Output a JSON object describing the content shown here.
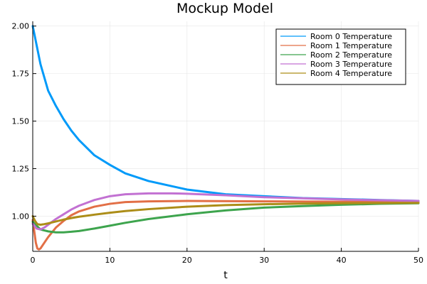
{
  "chart_data": {
    "type": "line",
    "title": "Mockup Model",
    "xlabel": "t",
    "ylabel": "",
    "xlim": [
      0,
      50
    ],
    "ylim": [
      0.815,
      2.025
    ],
    "xticks": [
      0,
      10,
      20,
      30,
      40,
      50
    ],
    "yticks": [
      1.0,
      1.25,
      1.5,
      1.75,
      2.0
    ],
    "ytick_labels": [
      "1.00",
      "1.25",
      "1.50",
      "1.75",
      "2.00"
    ],
    "grid": true,
    "legend_position": "top-right",
    "series": [
      {
        "name": "Room 0 Temperature",
        "color": "#009af9",
        "x": [
          0,
          0.5,
          1,
          2,
          3,
          4,
          5,
          6,
          8,
          10,
          12,
          15,
          20,
          25,
          30,
          35,
          40,
          45,
          50
        ],
        "y": [
          2.0,
          1.9,
          1.8,
          1.66,
          1.58,
          1.51,
          1.45,
          1.4,
          1.32,
          1.27,
          1.225,
          1.185,
          1.14,
          1.115,
          1.105,
          1.095,
          1.09,
          1.085,
          1.08
        ]
      },
      {
        "name": "Room 1 Temperature",
        "color": "#e26f46",
        "x": [
          0,
          0.2,
          0.4,
          0.6,
          0.8,
          1,
          1.5,
          2,
          3,
          4,
          5,
          6,
          8,
          10,
          12,
          15,
          20,
          30,
          40,
          50
        ],
        "y": [
          0.98,
          0.92,
          0.86,
          0.83,
          0.825,
          0.83,
          0.86,
          0.89,
          0.94,
          0.975,
          1.005,
          1.025,
          1.05,
          1.065,
          1.074,
          1.078,
          1.08,
          1.078,
          1.076,
          1.075
        ]
      },
      {
        "name": "Room 2 Temperature",
        "color": "#3da44d",
        "x": [
          0,
          0.5,
          1,
          2,
          3,
          4,
          5,
          6,
          8,
          10,
          12,
          15,
          20,
          25,
          30,
          35,
          40,
          45,
          50
        ],
        "y": [
          0.97,
          0.95,
          0.93,
          0.92,
          0.915,
          0.915,
          0.918,
          0.922,
          0.935,
          0.95,
          0.965,
          0.985,
          1.01,
          1.03,
          1.045,
          1.053,
          1.06,
          1.065,
          1.068
        ]
      },
      {
        "name": "Room 3 Temperature",
        "color": "#c271d2",
        "x": [
          0,
          0.5,
          1,
          1.5,
          2,
          3,
          4,
          5,
          6,
          8,
          10,
          12,
          15,
          18,
          20,
          25,
          30,
          40,
          50
        ],
        "y": [
          0.96,
          0.935,
          0.93,
          0.94,
          0.955,
          0.985,
          1.01,
          1.035,
          1.055,
          1.085,
          1.105,
          1.115,
          1.12,
          1.12,
          1.118,
          1.11,
          1.1,
          1.088,
          1.08
        ]
      },
      {
        "name": "Room 4 Temperature",
        "color": "#ac8d18",
        "x": [
          0,
          0.3,
          0.6,
          1,
          1.5,
          2,
          3,
          4,
          5,
          6,
          8,
          10,
          12,
          15,
          20,
          25,
          30,
          35,
          40,
          45,
          50
        ],
        "y": [
          1.0,
          0.975,
          0.958,
          0.955,
          0.958,
          0.962,
          0.972,
          0.982,
          0.99,
          0.997,
          1.008,
          1.018,
          1.027,
          1.037,
          1.05,
          1.058,
          1.063,
          1.066,
          1.068,
          1.069,
          1.07
        ]
      }
    ]
  }
}
